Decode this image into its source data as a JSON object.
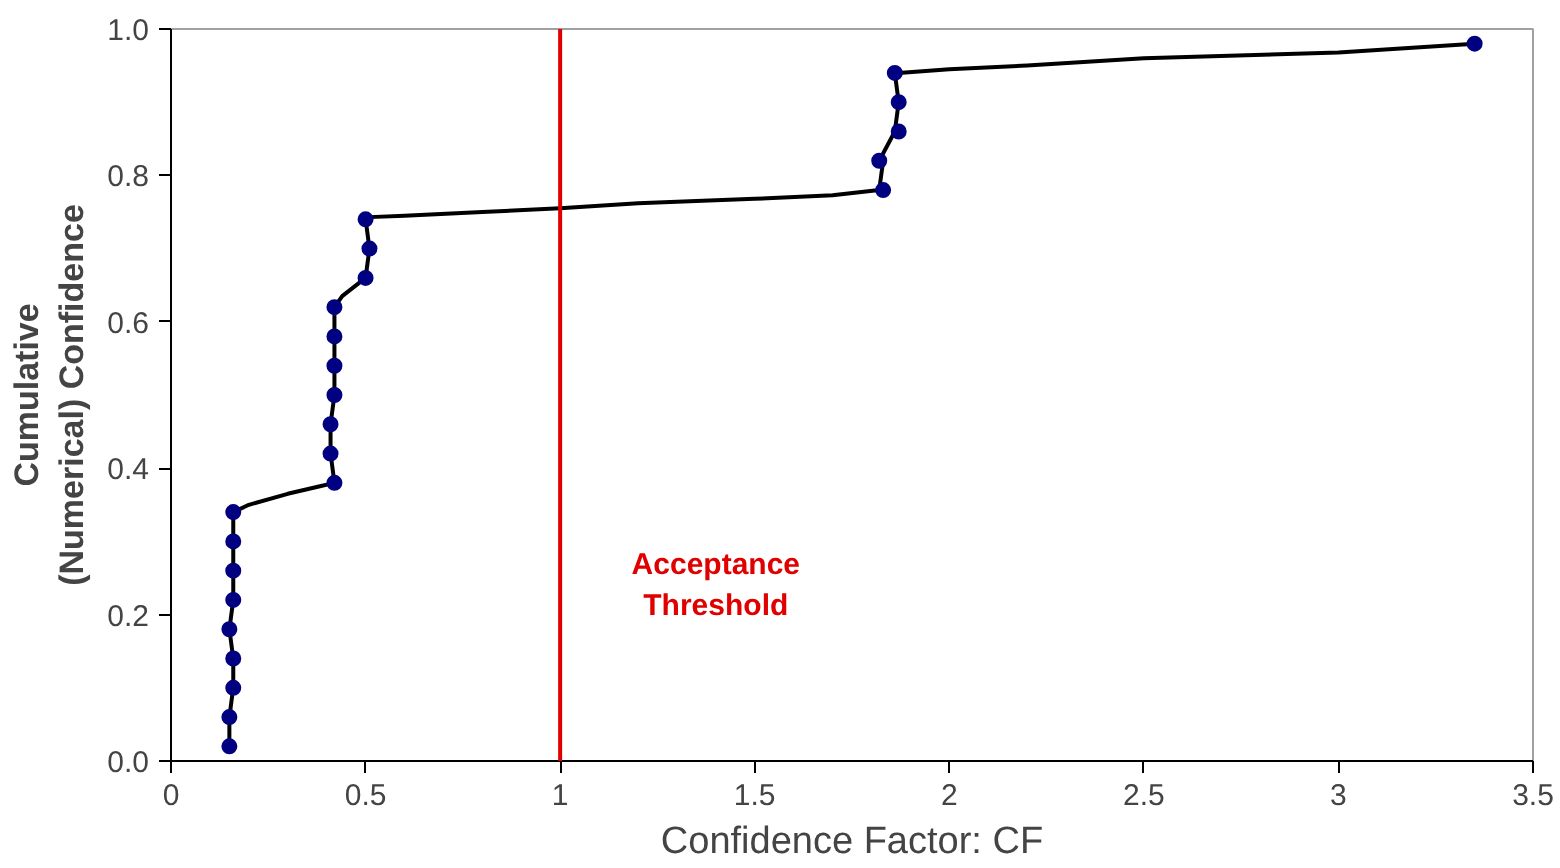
{
  "chart_data": {
    "type": "line",
    "xlabel": "Confidence Factor: CF",
    "ylabel": "Cumulative (Numerical) Confidence",
    "xlim": [
      0,
      3.5
    ],
    "xticks": [
      0,
      0.5,
      1,
      1.5,
      2,
      2.5,
      3,
      3.5
    ],
    "ylim": [
      0,
      1
    ],
    "yticks": [
      {
        "value": 0,
        "label": "0.0"
      },
      {
        "value": 0.2,
        "label": "0.2"
      },
      {
        "value": 0.4,
        "label": "0.4"
      },
      {
        "value": 0.6,
        "label": "0.6"
      },
      {
        "value": 0.8,
        "label": "0.8"
      },
      {
        "value": 1,
        "label": "1.0"
      }
    ],
    "grid": false,
    "series": [
      {
        "marker": "none",
        "color": "#000000",
        "x": [
          0.15,
          0.15,
          0.16,
          0.16,
          0.15,
          0.16,
          0.16,
          0.16,
          0.16,
          0.2,
          0.3,
          0.38,
          0.42,
          0.41,
          0.41,
          0.42,
          0.42,
          0.42,
          0.42,
          0.44,
          0.5,
          0.51,
          0.5,
          0.51,
          0.6,
          0.8,
          1.0,
          1.2,
          1.5,
          1.7,
          1.82,
          1.83,
          1.82,
          1.86,
          1.87,
          1.86,
          1.87,
          2.0,
          2.2,
          2.5,
          3.0,
          3.35
        ],
        "values": [
          0.02,
          0.06,
          0.1,
          0.14,
          0.18,
          0.22,
          0.26,
          0.3,
          0.34,
          0.35,
          0.365,
          0.375,
          0.38,
          0.42,
          0.46,
          0.5,
          0.54,
          0.58,
          0.62,
          0.635,
          0.66,
          0.7,
          0.74,
          0.743,
          0.745,
          0.75,
          0.755,
          0.762,
          0.768,
          0.773,
          0.78,
          0.82,
          0.82,
          0.86,
          0.9,
          0.94,
          0.94,
          0.945,
          0.95,
          0.96,
          0.968,
          0.98
        ]
      },
      {
        "type": "scatter",
        "marker": "circle",
        "color": "#000080",
        "x": [
          0.15,
          0.15,
          0.16,
          0.16,
          0.15,
          0.16,
          0.16,
          0.16,
          0.16,
          0.42,
          0.41,
          0.41,
          0.42,
          0.42,
          0.42,
          0.42,
          0.5,
          0.51,
          0.5,
          1.83,
          1.82,
          1.87,
          1.87,
          1.86,
          3.35
        ],
        "values": [
          0.02,
          0.06,
          0.1,
          0.14,
          0.18,
          0.22,
          0.26,
          0.3,
          0.34,
          0.38,
          0.42,
          0.46,
          0.5,
          0.54,
          0.58,
          0.62,
          0.66,
          0.7,
          0.74,
          0.78,
          0.82,
          0.86,
          0.9,
          0.94,
          0.98
        ]
      }
    ],
    "ref_lines": [
      {
        "axis": "x",
        "value": 1,
        "label": "Acceptance Threshold",
        "color": "#e00000",
        "line_style": "solid"
      }
    ]
  }
}
